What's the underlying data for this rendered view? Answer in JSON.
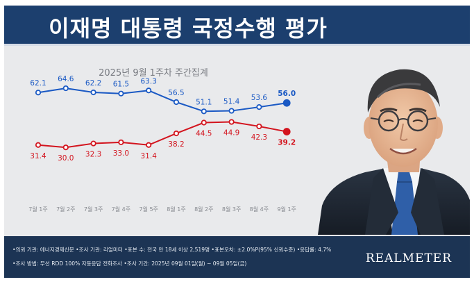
{
  "header": {
    "title": "이재명 대통령 국정수행 평가"
  },
  "chart_data": {
    "type": "line",
    "subtitle": "2025년 9월 1주차 주간집계",
    "categories": [
      "7월 1주",
      "7월 2주",
      "7월 3주",
      "7월 4주",
      "7월 5주",
      "8월 1주",
      "8월 2주",
      "8월 3주",
      "8월 4주",
      "9월 1주"
    ],
    "series": [
      {
        "values": [
          62.1,
          64.6,
          62.2,
          61.5,
          63.3,
          56.5,
          51.1,
          51.4,
          53.6,
          56.0
        ],
        "color": "#1a59c4"
      },
      {
        "values": [
          31.4,
          30.0,
          32.3,
          33.0,
          31.4,
          38.2,
          44.5,
          44.9,
          42.3,
          39.2
        ],
        "color": "#d3141e"
      }
    ],
    "grid": false,
    "legend": "none"
  },
  "footer": {
    "line1": "•의뢰 기관: 에너지경제신문 •조사 기관: 리얼미터 •표본 수: 전국 만 18세 이상 2,519명 •표본오차: ±2.0%P(95% 신뢰수준) •응답률: 4.7%",
    "line2": "•조사 방법: 무선 RDD 100% 자동응답 전화조사 •조사 기간: 2025년 09월 01일(월) ~ 09월 05일(금)",
    "brand": "REALMETER"
  },
  "colors": {
    "header_bg": "#1c3f6e",
    "footer_bg": "#1c3454",
    "approve": "#1a59c4",
    "disapprove": "#d3141e"
  },
  "icons": {
    "photo": "president-portrait"
  }
}
